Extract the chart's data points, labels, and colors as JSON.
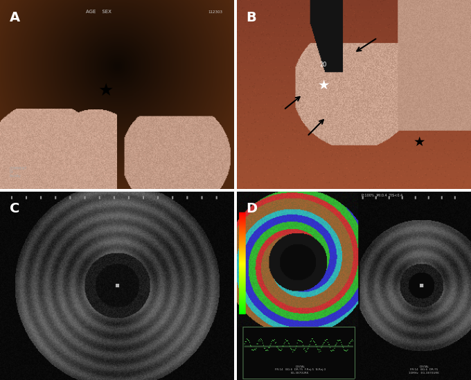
{
  "bg_color": "#ffffff",
  "panel_bg_A": "#1a0800",
  "panel_bg_B": "#1a0500",
  "panel_bg_C": "#111111",
  "panel_bg_D": "#080808",
  "label_A": "A",
  "label_B": "B",
  "label_C": "C",
  "label_D": "D",
  "label_color": "#ffffff",
  "label_fontsize": 14,
  "label_fontweight": "bold",
  "fig_width": 6.8,
  "fig_height": 5.49,
  "dpi": 100
}
